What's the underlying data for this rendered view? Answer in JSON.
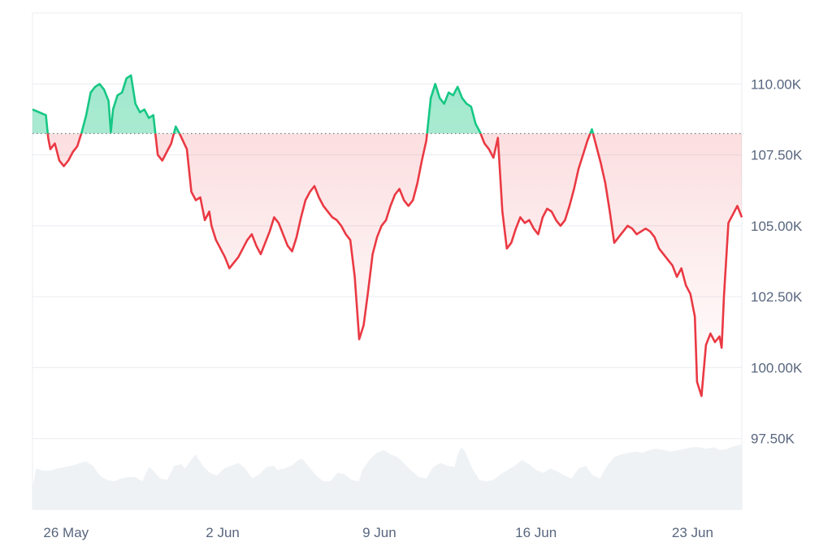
{
  "chart_data": {
    "type": "area",
    "title": "",
    "xlabel": "",
    "ylabel": "",
    "baseline": 108250,
    "ylim": [
      95000,
      112500
    ],
    "y_ticks": [
      {
        "value": 110000,
        "label": "110.00K"
      },
      {
        "value": 107500,
        "label": "107.50K"
      },
      {
        "value": 105000,
        "label": "105.00K"
      },
      {
        "value": 102500,
        "label": "102.50K"
      },
      {
        "value": 100000,
        "label": "100.00K"
      },
      {
        "value": 97500,
        "label": "97.50K"
      }
    ],
    "x_range": [
      0,
      30.5
    ],
    "x_ticks": [
      {
        "value": 1.5,
        "label": "26 May"
      },
      {
        "value": 8.5,
        "label": "2 Jun"
      },
      {
        "value": 15.5,
        "label": "9 Jun"
      },
      {
        "value": 22.5,
        "label": "16 Jun"
      },
      {
        "value": 29.5,
        "label": "23 Jun"
      }
    ],
    "colors": {
      "above": "#16c784",
      "below": "#ea3943",
      "volume": "#eff2f5",
      "grid": "#e9ecf1"
    },
    "series": [
      {
        "values": [
          [
            0.0,
            109100
          ],
          [
            0.3,
            109000
          ],
          [
            0.6,
            108900
          ],
          [
            0.7,
            108100
          ],
          [
            0.8,
            107700
          ],
          [
            1.0,
            107900
          ],
          [
            1.2,
            107300
          ],
          [
            1.4,
            107100
          ],
          [
            1.6,
            107300
          ],
          [
            1.8,
            107600
          ],
          [
            2.0,
            107800
          ],
          [
            2.2,
            108300
          ],
          [
            2.4,
            108900
          ],
          [
            2.6,
            109700
          ],
          [
            2.8,
            109900
          ],
          [
            3.0,
            110000
          ],
          [
            3.2,
            109800
          ],
          [
            3.4,
            109400
          ],
          [
            3.5,
            108300
          ],
          [
            3.6,
            109100
          ],
          [
            3.8,
            109600
          ],
          [
            4.0,
            109700
          ],
          [
            4.2,
            110200
          ],
          [
            4.4,
            110300
          ],
          [
            4.6,
            109300
          ],
          [
            4.8,
            109000
          ],
          [
            5.0,
            109100
          ],
          [
            5.2,
            108800
          ],
          [
            5.4,
            108900
          ],
          [
            5.6,
            107500
          ],
          [
            5.8,
            107300
          ],
          [
            6.0,
            107600
          ],
          [
            6.2,
            107900
          ],
          [
            6.4,
            108500
          ],
          [
            6.6,
            108200
          ],
          [
            6.9,
            107700
          ],
          [
            7.1,
            106200
          ],
          [
            7.3,
            105900
          ],
          [
            7.5,
            106000
          ],
          [
            7.7,
            105200
          ],
          [
            7.9,
            105500
          ],
          [
            8.0,
            105000
          ],
          [
            8.2,
            104500
          ],
          [
            8.4,
            104200
          ],
          [
            8.6,
            103900
          ],
          [
            8.8,
            103500
          ],
          [
            9.0,
            103700
          ],
          [
            9.2,
            103900
          ],
          [
            9.4,
            104200
          ],
          [
            9.6,
            104500
          ],
          [
            9.8,
            104700
          ],
          [
            10.0,
            104300
          ],
          [
            10.2,
            104000
          ],
          [
            10.4,
            104400
          ],
          [
            10.6,
            104800
          ],
          [
            10.8,
            105300
          ],
          [
            11.0,
            105100
          ],
          [
            11.2,
            104700
          ],
          [
            11.4,
            104300
          ],
          [
            11.6,
            104100
          ],
          [
            11.8,
            104600
          ],
          [
            12.0,
            105300
          ],
          [
            12.2,
            105900
          ],
          [
            12.4,
            106200
          ],
          [
            12.6,
            106400
          ],
          [
            12.8,
            106000
          ],
          [
            13.0,
            105700
          ],
          [
            13.2,
            105500
          ],
          [
            13.4,
            105300
          ],
          [
            13.6,
            105200
          ],
          [
            13.8,
            105000
          ],
          [
            14.0,
            104700
          ],
          [
            14.2,
            104500
          ],
          [
            14.4,
            103200
          ],
          [
            14.6,
            101000
          ],
          [
            14.8,
            101500
          ],
          [
            15.0,
            102700
          ],
          [
            15.2,
            104000
          ],
          [
            15.4,
            104600
          ],
          [
            15.6,
            105000
          ],
          [
            15.8,
            105200
          ],
          [
            16.0,
            105700
          ],
          [
            16.2,
            106100
          ],
          [
            16.4,
            106300
          ],
          [
            16.6,
            105900
          ],
          [
            16.8,
            105700
          ],
          [
            17.0,
            105900
          ],
          [
            17.2,
            106500
          ],
          [
            17.4,
            107300
          ],
          [
            17.6,
            108000
          ],
          [
            17.8,
            109500
          ],
          [
            18.0,
            110000
          ],
          [
            18.2,
            109500
          ],
          [
            18.4,
            109300
          ],
          [
            18.6,
            109700
          ],
          [
            18.8,
            109600
          ],
          [
            19.0,
            109900
          ],
          [
            19.2,
            109500
          ],
          [
            19.4,
            109300
          ],
          [
            19.6,
            109200
          ],
          [
            19.8,
            108600
          ],
          [
            20.0,
            108300
          ],
          [
            20.2,
            107900
          ],
          [
            20.4,
            107700
          ],
          [
            20.6,
            107400
          ],
          [
            20.8,
            108100
          ],
          [
            21.0,
            105500
          ],
          [
            21.2,
            104200
          ],
          [
            21.4,
            104400
          ],
          [
            21.6,
            104900
          ],
          [
            21.8,
            105300
          ],
          [
            22.0,
            105100
          ],
          [
            22.2,
            105200
          ],
          [
            22.4,
            104900
          ],
          [
            22.6,
            104700
          ],
          [
            22.8,
            105300
          ],
          [
            23.0,
            105600
          ],
          [
            23.2,
            105500
          ],
          [
            23.4,
            105200
          ],
          [
            23.6,
            105000
          ],
          [
            23.8,
            105200
          ],
          [
            24.0,
            105700
          ],
          [
            24.2,
            106300
          ],
          [
            24.4,
            107000
          ],
          [
            24.6,
            107500
          ],
          [
            24.8,
            108000
          ],
          [
            25.0,
            108400
          ],
          [
            25.2,
            107800
          ],
          [
            25.4,
            107200
          ],
          [
            25.6,
            106500
          ],
          [
            25.8,
            105500
          ],
          [
            26.0,
            104400
          ],
          [
            26.2,
            104600
          ],
          [
            26.4,
            104800
          ],
          [
            26.6,
            105000
          ],
          [
            26.8,
            104900
          ],
          [
            27.0,
            104700
          ],
          [
            27.2,
            104800
          ],
          [
            27.4,
            104900
          ],
          [
            27.6,
            104800
          ],
          [
            27.8,
            104600
          ],
          [
            28.0,
            104200
          ],
          [
            28.2,
            104000
          ],
          [
            28.4,
            103800
          ],
          [
            28.6,
            103600
          ],
          [
            28.8,
            103200
          ],
          [
            29.0,
            103500
          ],
          [
            29.2,
            102900
          ],
          [
            29.4,
            102600
          ],
          [
            29.6,
            101800
          ],
          [
            29.7,
            99500
          ],
          [
            29.9,
            99000
          ],
          [
            30.1,
            100800
          ],
          [
            30.3,
            101200
          ],
          [
            30.5,
            100900
          ],
          [
            30.7,
            101100
          ],
          [
            30.8,
            100700
          ],
          [
            30.9,
            102500
          ],
          [
            31.1,
            105100
          ],
          [
            31.3,
            105400
          ],
          [
            31.5,
            105700
          ],
          [
            31.7,
            105300
          ]
        ]
      }
    ],
    "volume": {
      "values": [
        [
          0.0,
          30
        ],
        [
          0.5,
          58
        ],
        [
          1.5,
          55
        ],
        [
          2.5,
          55
        ],
        [
          3.5,
          58
        ],
        [
          4.5,
          60
        ],
        [
          5.5,
          62
        ],
        [
          6.5,
          65
        ],
        [
          7.5,
          68
        ],
        [
          8.5,
          62
        ],
        [
          9.5,
          48
        ],
        [
          10.5,
          42
        ],
        [
          11.5,
          40
        ],
        [
          12.5,
          44
        ],
        [
          13.5,
          46
        ],
        [
          14.5,
          46
        ],
        [
          15.5,
          40
        ],
        [
          16.0,
          52
        ],
        [
          16.5,
          60
        ],
        [
          17.0,
          55
        ],
        [
          18.0,
          44
        ],
        [
          19.0,
          42
        ],
        [
          19.5,
          52
        ],
        [
          20.0,
          62
        ],
        [
          21.0,
          64
        ],
        [
          21.5,
          58
        ],
        [
          22.5,
          72
        ],
        [
          23.0,
          78
        ],
        [
          24.0,
          62
        ],
        [
          25.0,
          52
        ],
        [
          26.0,
          48
        ],
        [
          27.0,
          58
        ],
        [
          28.0,
          62
        ],
        [
          29.0,
          66
        ],
        [
          30.0,
          58
        ],
        [
          31.0,
          44
        ],
        [
          32.0,
          50
        ],
        [
          33.0,
          60
        ],
        [
          34.0,
          62
        ],
        [
          34.5,
          56
        ],
        [
          35.5,
          58
        ],
        [
          36.5,
          62
        ],
        [
          37.5,
          70
        ],
        [
          38.0,
          72
        ],
        [
          39.0,
          60
        ],
        [
          40.0,
          48
        ],
        [
          41.0,
          40
        ],
        [
          42.0,
          40
        ],
        [
          43.0,
          52
        ],
        [
          44.0,
          50
        ],
        [
          45.0,
          42
        ],
        [
          46.0,
          40
        ],
        [
          46.5,
          56
        ],
        [
          47.5,
          70
        ],
        [
          48.5,
          80
        ],
        [
          49.5,
          84
        ],
        [
          50.5,
          78
        ],
        [
          51.5,
          74
        ],
        [
          52.5,
          64
        ],
        [
          53.5,
          54
        ],
        [
          54.5,
          46
        ],
        [
          55.5,
          44
        ],
        [
          56.5,
          60
        ],
        [
          57.5,
          66
        ],
        [
          58.5,
          62
        ],
        [
          59.5,
          60
        ],
        [
          60.0,
          80
        ],
        [
          60.5,
          88
        ],
        [
          61.0,
          82
        ],
        [
          62.0,
          58
        ],
        [
          63.0,
          42
        ],
        [
          64.0,
          40
        ],
        [
          65.0,
          42
        ],
        [
          66.0,
          50
        ],
        [
          67.0,
          56
        ],
        [
          68.0,
          62
        ],
        [
          69.0,
          70
        ],
        [
          70.0,
          64
        ],
        [
          71.0,
          56
        ],
        [
          72.0,
          52
        ],
        [
          73.0,
          58
        ],
        [
          74.0,
          54
        ],
        [
          75.0,
          48
        ],
        [
          76.0,
          44
        ],
        [
          77.0,
          58
        ],
        [
          78.0,
          62
        ],
        [
          79.0,
          48
        ],
        [
          80.0,
          44
        ],
        [
          81.0,
          62
        ],
        [
          82.0,
          74
        ],
        [
          83.0,
          78
        ],
        [
          84.0,
          80
        ],
        [
          85.0,
          82
        ],
        [
          86.0,
          80
        ],
        [
          87.0,
          84
        ],
        [
          88.0,
          86
        ],
        [
          89.0,
          84
        ],
        [
          90.0,
          82
        ],
        [
          91.0,
          84
        ],
        [
          92.0,
          86
        ],
        [
          93.0,
          88
        ],
        [
          94.0,
          88
        ],
        [
          95.0,
          86
        ],
        [
          96.0,
          88
        ],
        [
          97.0,
          84
        ],
        [
          98.0,
          86
        ],
        [
          99.0,
          90
        ],
        [
          100.0,
          92
        ]
      ]
    }
  }
}
